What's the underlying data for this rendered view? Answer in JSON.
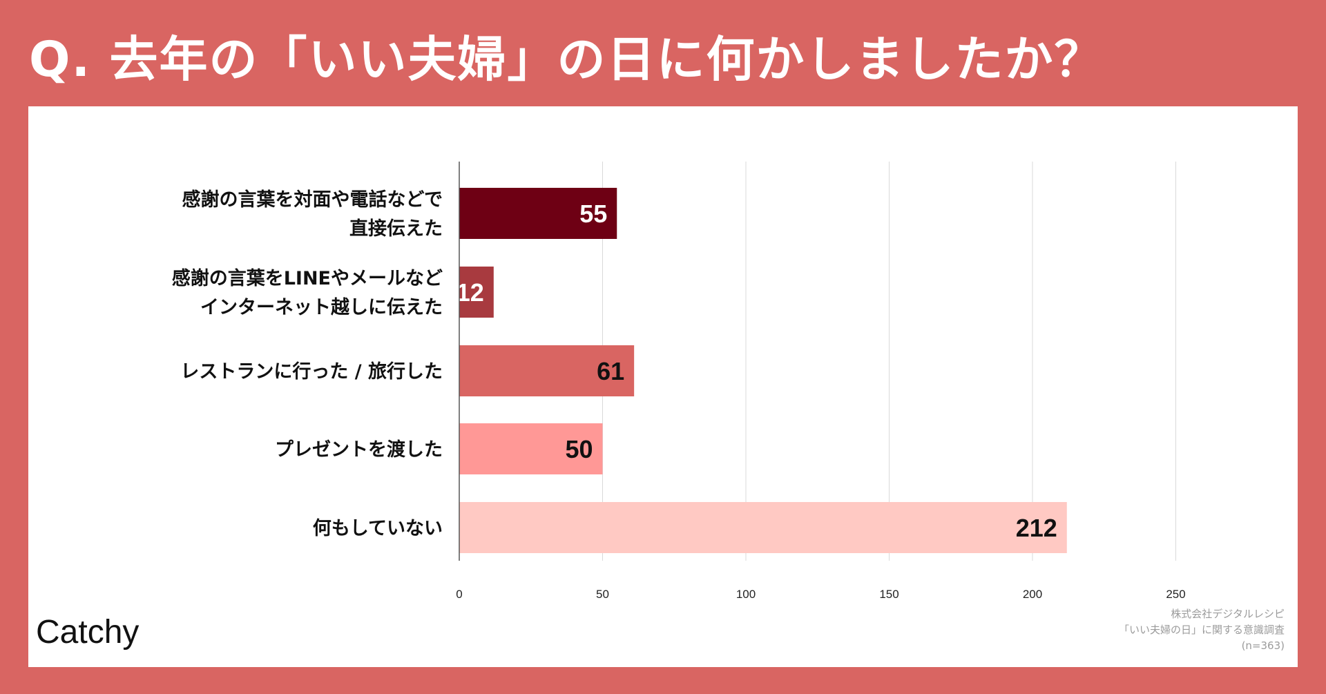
{
  "title": "Q. 去年の「いい夫婦」の日に何かしましたか？",
  "brand": "Catchy",
  "source": {
    "line1": "株式会社デジタルレシピ",
    "line2": "「いい夫婦の日」に関する意識調査",
    "line3": "(n=363)"
  },
  "colors": {
    "background": "#D96562",
    "panel": "#ffffff"
  },
  "chart_data": {
    "type": "bar",
    "orientation": "horizontal",
    "categories": [
      [
        "感謝の言葉を対面や電話などで",
        "直接伝えた"
      ],
      [
        "感謝の言葉をLINEやメールなど",
        "インターネット越しに伝えた"
      ],
      [
        "レストランに行った / 旅行した"
      ],
      [
        "プレゼントを渡した"
      ],
      [
        "何もしていない"
      ]
    ],
    "values": [
      55,
      12,
      61,
      50,
      212
    ],
    "bar_colors": [
      "#6E0014",
      "#A83A3F",
      "#D96562",
      "#FF9896",
      "#FFC9C3"
    ],
    "label_colors": [
      "#ffffff",
      "#ffffff",
      "#111111",
      "#111111",
      "#111111"
    ],
    "xlim": [
      0,
      250
    ],
    "xticks": [
      0,
      50,
      100,
      150,
      200,
      250
    ],
    "grid": true,
    "title": "",
    "xlabel": "",
    "ylabel": ""
  }
}
